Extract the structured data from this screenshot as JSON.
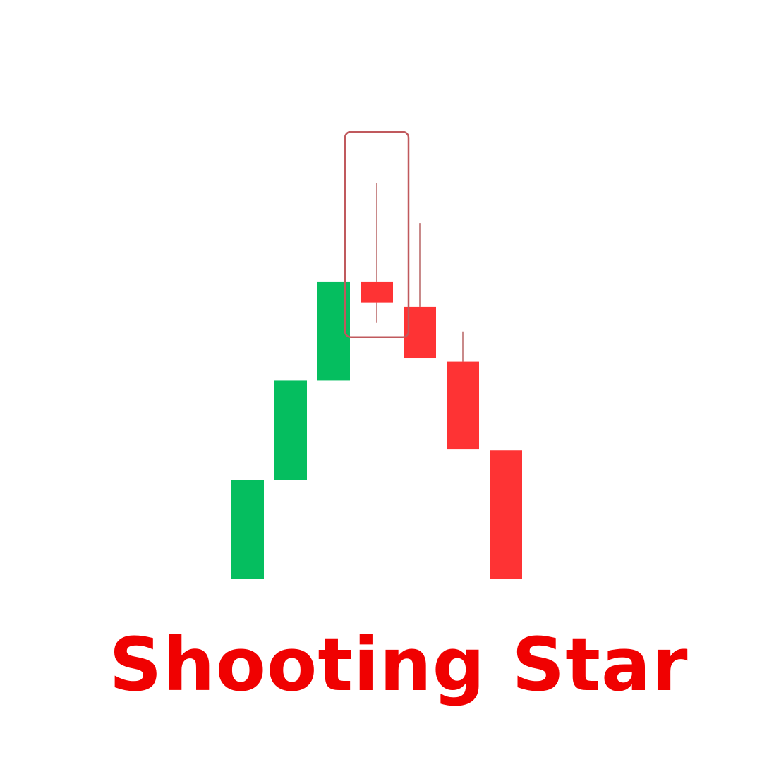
{
  "chart_data": {
    "type": "candlestick",
    "title": "Shooting Star",
    "xlabel": "",
    "ylabel": "",
    "ylim": [
      0,
      100
    ],
    "grid": false,
    "colors": {
      "up": "#05be5f",
      "down": "#fe3334",
      "wick": "#c98a8a",
      "highlight": "#c0595d",
      "title": "#f00101"
    },
    "candles": [
      {
        "open": 0,
        "close": 24.6,
        "high": 24.6,
        "low": 0
      },
      {
        "open": 24.6,
        "close": 49.3,
        "high": 49.3,
        "low": 24.6
      },
      {
        "open": 49.3,
        "close": 73.9,
        "high": 73.9,
        "low": 49.3
      },
      {
        "open": 73.9,
        "close": 68.7,
        "high": 98.4,
        "low": 63.6
      },
      {
        "open": 67.6,
        "close": 54.8,
        "high": 88.4,
        "low": 54.8
      },
      {
        "open": 54.0,
        "close": 32.2,
        "high": 61.5,
        "low": 32.2
      },
      {
        "open": 32.0,
        "close": 0,
        "high": 32.0,
        "low": 0
      }
    ],
    "highlight_index": 3
  }
}
